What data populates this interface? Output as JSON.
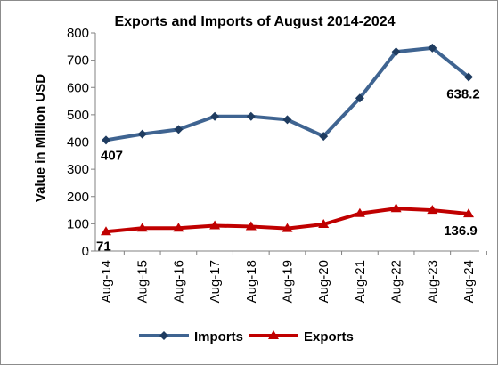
{
  "chart_data": {
    "type": "line",
    "title": "Exports and Imports of August 2014-2024",
    "xlabel": "",
    "ylabel": "Value in  Million  USD",
    "ylim": [
      0,
      800
    ],
    "yticks": [
      0,
      100,
      200,
      300,
      400,
      500,
      600,
      700,
      800
    ],
    "grid": false,
    "legend_position": "bottom",
    "categories": [
      "Aug-14",
      "Aug-15",
      "Aug-16",
      "Aug-17",
      "Aug-18",
      "Aug-19",
      "Aug-20",
      "Aug-21",
      "Aug-22",
      "Aug-23",
      "Aug-24"
    ],
    "series": [
      {
        "name": "Imports",
        "color": "#3f6491",
        "marker": "diamond",
        "values": [
          407,
          429,
          446,
          494,
          494,
          482,
          421,
          561,
          731,
          745,
          638.2
        ],
        "data_labels": [
          {
            "index": 0,
            "text": "407"
          },
          {
            "index": 10,
            "text": "638.2"
          }
        ]
      },
      {
        "name": "Exports",
        "color": "#c00000",
        "marker": "triangle",
        "values": [
          71,
          84,
          84,
          93,
          90,
          83,
          98,
          138,
          156,
          150,
          136.9
        ],
        "data_labels": [
          {
            "index": 0,
            "text": "71"
          },
          {
            "index": 10,
            "text": "136.9"
          }
        ]
      }
    ]
  }
}
